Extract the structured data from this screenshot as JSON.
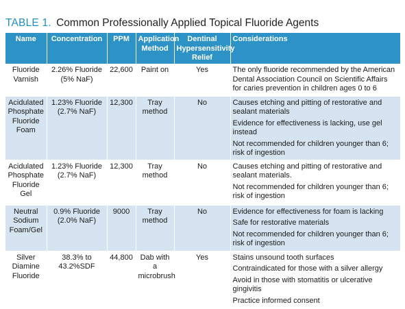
{
  "title": {
    "label": "TABLE 1.",
    "text": "Common Professionally Applied Topical Fluoride Agents"
  },
  "columns": [
    "Name",
    "Concentration",
    "PPM",
    "Application Method",
    "Dentinal Hypersensitivity Relief",
    "Considerations"
  ],
  "rows": [
    {
      "name": "Fluoride Varnish",
      "concentration": "2.26% Fluoride (5% NaF)",
      "ppm": "22,600",
      "method": "Paint on",
      "relief": "Yes",
      "considerations": [
        "The only fluoride recommended by the American Dental Association Council on Scientific Affairs for caries prevention in children ages 0 to 6"
      ]
    },
    {
      "name": "Acidulated Phosphate Fluoride Foam",
      "concentration": "1.23% Fluoride (2.7% NaF)",
      "ppm": "12,300",
      "method": "Tray method",
      "relief": "No",
      "considerations": [
        "Causes etching and pitting of restorative and sealant materials",
        "Evidence for effectiveness is lacking, use gel instead",
        "Not recommended for children younger than 6; risk of ingestion"
      ]
    },
    {
      "name": "Acidulated Phosphate Fluoride Gel",
      "concentration": "1.23% Fluoride (2.7% NaF)",
      "ppm": "12,300",
      "method": "Tray method",
      "relief": "No",
      "considerations": [
        "Causes etching and pitting of restorative and sealant materials.",
        "Not recommended for children younger than 6; risk of ingestion"
      ]
    },
    {
      "name": "Neutral Sodium Foam/Gel",
      "concentration": "0.9% Fluoride (2.0% NaF)",
      "ppm": "9000",
      "method": "Tray method",
      "relief": "No",
      "considerations": [
        "Evidence for effectiveness for foam is lacking",
        "Safe for restorative materials",
        "Not recommended for children younger than 6; risk of ingestion"
      ]
    },
    {
      "name": "Silver Diamine Fluoride",
      "concentration": "38.3% to 43.2%SDF",
      "ppm": "44,800",
      "method": "Dab with a microbrush",
      "relief": "Yes",
      "considerations": [
        "Stains unsound tooth surfaces",
        "Contraindicated for those with a silver allergy",
        "Avoid in those with stomatitis or ulcerative gingivitis",
        "Practice informed consent"
      ]
    }
  ],
  "colors": {
    "header_bg": "#2d92c5",
    "title_accent": "#1f8fc3",
    "row_shade": "#d6e4f1"
  }
}
